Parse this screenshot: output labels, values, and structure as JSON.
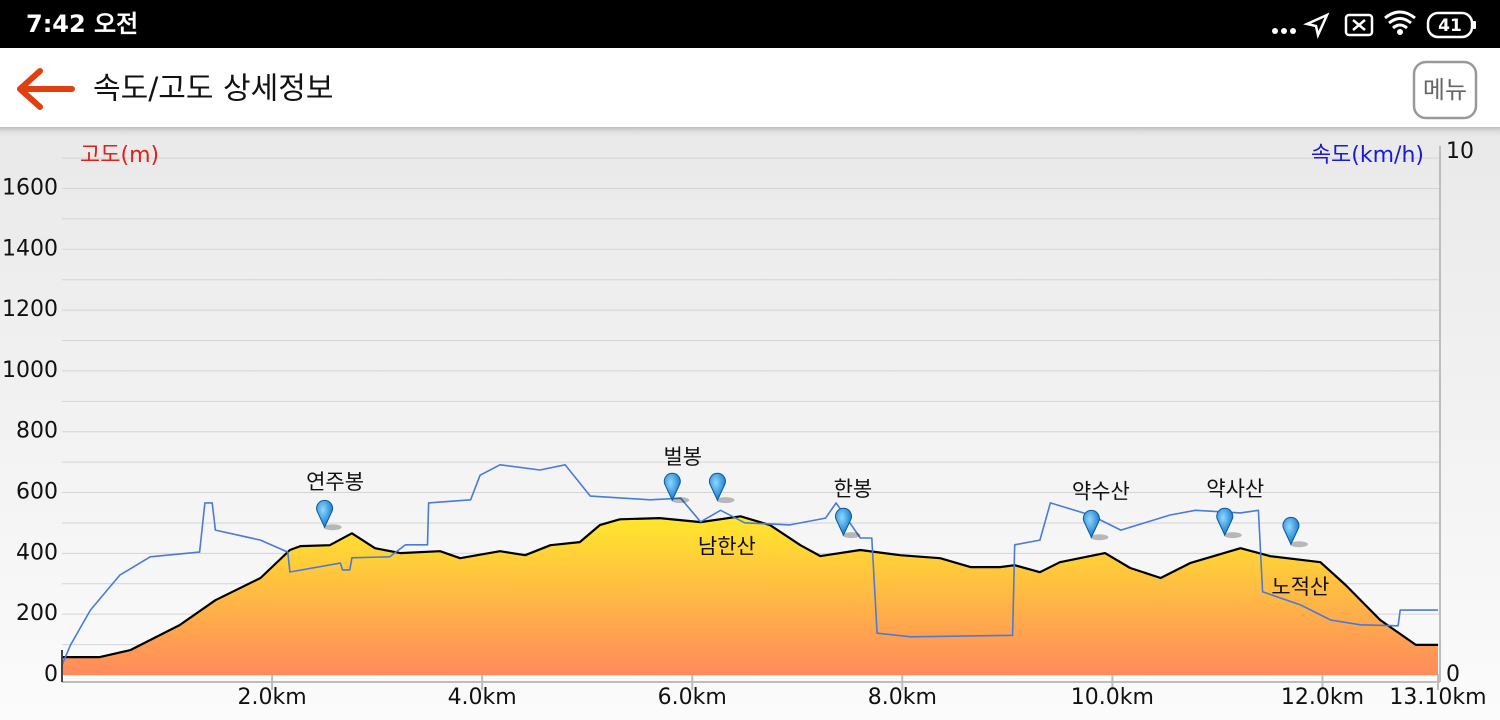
{
  "status_bar": {
    "time": "7:42 오전",
    "battery": "41"
  },
  "header": {
    "title": "속도/고도 상세정보",
    "menu": "메뉴"
  },
  "chart_data": {
    "type": "line",
    "xlim": [
      0,
      13.1
    ],
    "xticks": [
      {
        "value": 2,
        "label": "2.0km"
      },
      {
        "value": 4,
        "label": "4.0km"
      },
      {
        "value": 6,
        "label": "6.0km"
      },
      {
        "value": 8,
        "label": "8.0km"
      },
      {
        "value": 10,
        "label": "10.0km"
      },
      {
        "value": 12,
        "label": "12.0km"
      },
      {
        "value": 13.1,
        "label": "13.10km"
      }
    ],
    "ylim": [
      0,
      1720
    ],
    "yticks": [
      0,
      200,
      400,
      600,
      800,
      1000,
      1200,
      1400,
      1600
    ],
    "ygrid_minor": [
      100,
      300,
      500,
      700,
      900,
      1100,
      1300,
      1500,
      1700
    ],
    "y2lim": [
      0,
      10
    ],
    "y2ticks": [
      0,
      10
    ],
    "grid": true,
    "series": [
      {
        "name": "고도(m)",
        "color": "#000000",
        "label_color": "#e0201a",
        "fill_top": "#ffec2a",
        "fill_bottom": "#ff8a5c",
        "x": [
          0,
          0.36,
          0.65,
          1.12,
          1.46,
          1.89,
          2.17,
          2.27,
          2.55,
          2.76,
          2.98,
          3.22,
          3.6,
          3.79,
          4.17,
          4.41,
          4.65,
          4.93,
          5.12,
          5.31,
          5.69,
          6.08,
          6.46,
          6.74,
          7.03,
          7.22,
          7.6,
          7.98,
          8.36,
          8.65,
          8.93,
          9.07,
          9.31,
          9.5,
          9.93,
          10.17,
          10.46,
          10.74,
          11.22,
          11.5,
          11.98,
          12.22,
          12.55,
          12.89,
          13.1
        ],
        "values": [
          59,
          59,
          82,
          164,
          246,
          319,
          411,
          424,
          427,
          466,
          417,
          401,
          407,
          384,
          407,
          394,
          427,
          437,
          493,
          512,
          516,
          503,
          522,
          493,
          427,
          391,
          411,
          394,
          384,
          355,
          355,
          361,
          338,
          371,
          401,
          352,
          319,
          368,
          417,
          391,
          371,
          296,
          181,
          99,
          99
        ]
      },
      {
        "name": "속도(km/h)",
        "color": "#4a7bd6",
        "label_color": "#1a1ad8",
        "axis": "y2",
        "x": [
          0,
          0.08,
          0.27,
          0.55,
          0.84,
          1.31,
          1.36,
          1.43,
          1.46,
          1.89,
          2.15,
          2.17,
          2.65,
          2.67,
          2.74,
          2.76,
          3.12,
          3.27,
          3.48,
          3.49,
          3.89,
          3.98,
          4.17,
          4.55,
          4.79,
          5.03,
          5.6,
          5.89,
          6.08,
          6.27,
          6.5,
          6.93,
          7.27,
          7.37,
          7.6,
          7.71,
          7.76,
          8.08,
          9.05,
          9.07,
          9.31,
          9.41,
          9.79,
          10.08,
          10.55,
          10.79,
          11.22,
          11.39,
          11.43,
          11.79,
          12.08,
          12.36,
          12.72,
          12.74,
          13.1
        ],
        "values": [
          0.19,
          0.57,
          1.24,
          1.91,
          2.26,
          2.35,
          3.29,
          3.29,
          2.77,
          2.58,
          2.35,
          1.97,
          2.14,
          2.01,
          2.01,
          2.24,
          2.26,
          2.49,
          2.49,
          3.29,
          3.35,
          3.82,
          4.02,
          3.92,
          4.02,
          3.42,
          3.35,
          3.38,
          2.93,
          3.15,
          2.91,
          2.87,
          3.0,
          3.29,
          2.62,
          2.62,
          0.8,
          0.73,
          0.76,
          2.49,
          2.58,
          3.29,
          3.06,
          2.77,
          3.06,
          3.15,
          3.1,
          3.15,
          1.59,
          1.34,
          1.05,
          0.96,
          0.94,
          1.24,
          1.24
        ]
      }
    ],
    "annotations": [
      {
        "text": "연주봉",
        "x": 2.6,
        "y": 631
      },
      {
        "text": "벌봉",
        "x": 5.91,
        "y": 713
      },
      {
        "text": "남한산",
        "x": 6.33,
        "y": 420
      },
      {
        "text": "한봉",
        "x": 7.53,
        "y": 608
      },
      {
        "text": "약수산",
        "x": 9.89,
        "y": 601
      },
      {
        "text": "약사산",
        "x": 11.17,
        "y": 608
      },
      {
        "text": "노적산",
        "x": 11.79,
        "y": 286
      }
    ],
    "markers": [
      {
        "x": 2.5,
        "y": 486
      },
      {
        "x": 5.81,
        "y": 575
      },
      {
        "x": 6.24,
        "y": 575
      },
      {
        "x": 7.44,
        "y": 460
      },
      {
        "x": 9.8,
        "y": 453
      },
      {
        "x": 11.07,
        "y": 460
      },
      {
        "x": 11.7,
        "y": 430
      }
    ]
  }
}
